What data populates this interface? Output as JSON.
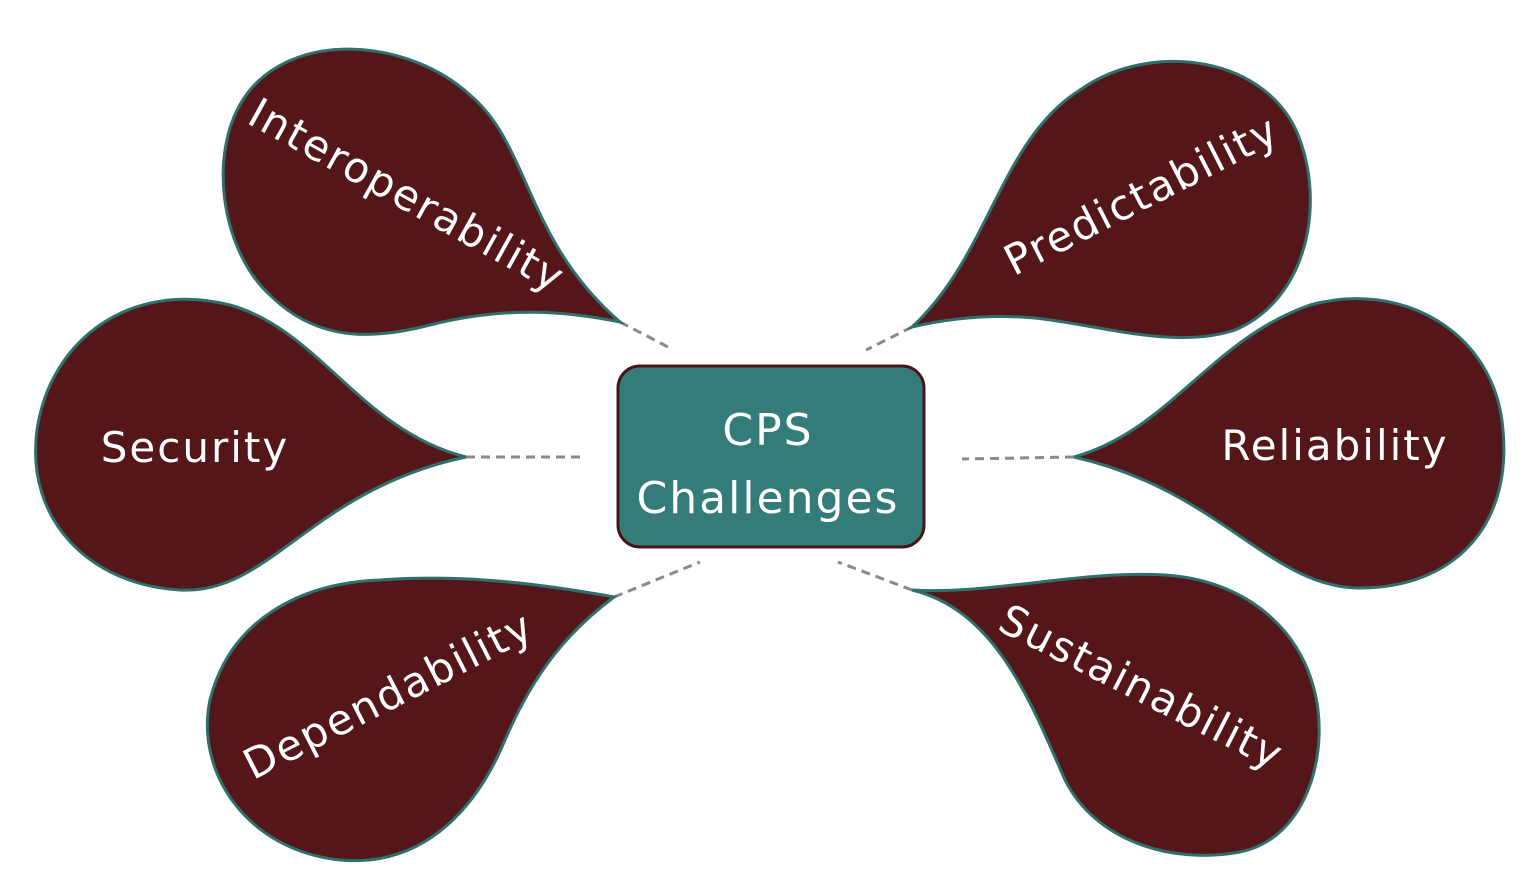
{
  "diagram": {
    "center": {
      "line1": "CPS",
      "line2": "Challenges"
    },
    "petals": {
      "interoperability": "Interoperability",
      "security": "Security",
      "dependability": "Dependability",
      "predictability": "Predictability",
      "reliability": "Reliability",
      "sustainability": "Sustainability"
    },
    "colors": {
      "petal_fill": "#541618",
      "petal_stroke": "#2f6f6c",
      "center_fill": "#337c79",
      "center_stroke": "#4a1416",
      "connector": "#8a8a8a",
      "text": "#ffffff"
    }
  }
}
